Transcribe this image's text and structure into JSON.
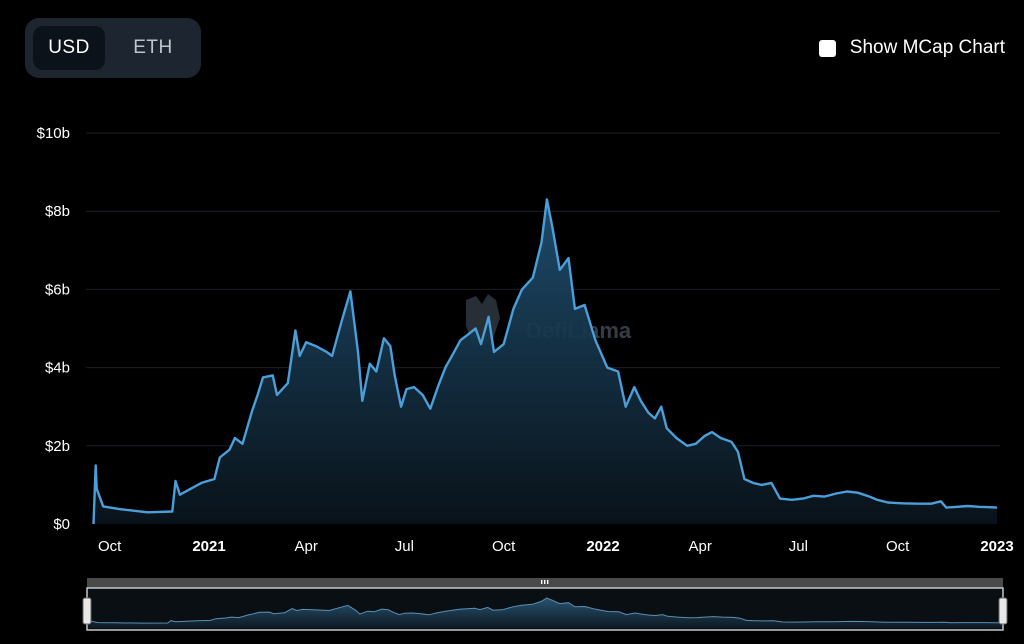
{
  "toggle": {
    "options": [
      "USD",
      "ETH"
    ],
    "active": "USD"
  },
  "mcap_toggle": {
    "label": "Show MCap Chart",
    "checked": false
  },
  "watermark": {
    "text": "DefiLlama"
  },
  "colors": {
    "line": "#4b9fd9",
    "grid": "#1b1f24",
    "background": "#000000"
  },
  "chart_data": {
    "type": "area",
    "ylim": [
      0,
      10000000000
    ],
    "y_ticks": [
      "$0",
      "$2b",
      "$4b",
      "$6b",
      "$8b",
      "$10b"
    ],
    "x_ticks": [
      {
        "date": "2020-10-01",
        "label": "Oct",
        "bold": false
      },
      {
        "date": "2021-01-01",
        "label": "2021",
        "bold": true
      },
      {
        "date": "2021-04-01",
        "label": "Apr",
        "bold": false
      },
      {
        "date": "2021-07-01",
        "label": "Jul",
        "bold": false
      },
      {
        "date": "2021-10-01",
        "label": "Oct",
        "bold": false
      },
      {
        "date": "2022-01-01",
        "label": "2022",
        "bold": true
      },
      {
        "date": "2022-04-01",
        "label": "Apr",
        "bold": false
      },
      {
        "date": "2022-07-01",
        "label": "Jul",
        "bold": false
      },
      {
        "date": "2022-10-01",
        "label": "Oct",
        "bold": false
      },
      {
        "date": "2023-01-01",
        "label": "2023",
        "bold": true
      }
    ],
    "grid": true,
    "series": [
      {
        "points": [
          [
            "2020-09-16",
            0.0
          ],
          [
            "2020-09-18",
            1.5
          ],
          [
            "2020-09-19",
            0.9
          ],
          [
            "2020-09-25",
            0.45
          ],
          [
            "2020-10-10",
            0.38
          ],
          [
            "2020-11-05",
            0.3
          ],
          [
            "2020-11-28",
            0.32
          ],
          [
            "2020-12-01",
            1.1
          ],
          [
            "2020-12-05",
            0.75
          ],
          [
            "2020-12-15",
            0.9
          ],
          [
            "2020-12-25",
            1.05
          ],
          [
            "2021-01-06",
            1.15
          ],
          [
            "2021-01-11",
            1.7
          ],
          [
            "2021-01-20",
            1.9
          ],
          [
            "2021-01-25",
            2.2
          ],
          [
            "2021-02-01",
            2.05
          ],
          [
            "2021-02-10",
            2.9
          ],
          [
            "2021-02-15",
            3.3
          ],
          [
            "2021-02-20",
            3.75
          ],
          [
            "2021-03-01",
            3.8
          ],
          [
            "2021-03-05",
            3.3
          ],
          [
            "2021-03-15",
            3.6
          ],
          [
            "2021-03-22",
            4.95
          ],
          [
            "2021-03-26",
            4.3
          ],
          [
            "2021-04-01",
            4.65
          ],
          [
            "2021-04-10",
            4.55
          ],
          [
            "2021-04-20",
            4.4
          ],
          [
            "2021-04-25",
            4.3
          ],
          [
            "2021-05-04",
            5.2
          ],
          [
            "2021-05-12",
            5.95
          ],
          [
            "2021-05-19",
            4.4
          ],
          [
            "2021-05-23",
            3.15
          ],
          [
            "2021-05-30",
            4.1
          ],
          [
            "2021-06-05",
            3.9
          ],
          [
            "2021-06-12",
            4.75
          ],
          [
            "2021-06-18",
            4.55
          ],
          [
            "2021-06-22",
            3.8
          ],
          [
            "2021-06-28",
            3.0
          ],
          [
            "2021-07-03",
            3.45
          ],
          [
            "2021-07-10",
            3.5
          ],
          [
            "2021-07-18",
            3.3
          ],
          [
            "2021-07-25",
            2.95
          ],
          [
            "2021-08-01",
            3.5
          ],
          [
            "2021-08-08",
            4.0
          ],
          [
            "2021-08-15",
            4.35
          ],
          [
            "2021-08-22",
            4.7
          ],
          [
            "2021-08-29",
            4.85
          ],
          [
            "2021-09-05",
            5.0
          ],
          [
            "2021-09-10",
            4.6
          ],
          [
            "2021-09-17",
            5.3
          ],
          [
            "2021-09-22",
            4.4
          ],
          [
            "2021-10-01",
            4.6
          ],
          [
            "2021-10-10",
            5.5
          ],
          [
            "2021-10-18",
            6.0
          ],
          [
            "2021-10-28",
            6.3
          ],
          [
            "2021-11-05",
            7.2
          ],
          [
            "2021-11-10",
            8.3
          ],
          [
            "2021-11-15",
            7.6
          ],
          [
            "2021-11-22",
            6.5
          ],
          [
            "2021-11-30",
            6.8
          ],
          [
            "2021-12-06",
            5.5
          ],
          [
            "2021-12-15",
            5.6
          ],
          [
            "2021-12-25",
            4.7
          ],
          [
            "2022-01-05",
            4.0
          ],
          [
            "2022-01-15",
            3.9
          ],
          [
            "2022-01-22",
            3.0
          ],
          [
            "2022-01-30",
            3.5
          ],
          [
            "2022-02-05",
            3.15
          ],
          [
            "2022-02-12",
            2.85
          ],
          [
            "2022-02-18",
            2.7
          ],
          [
            "2022-02-24",
            3.0
          ],
          [
            "2022-03-01",
            2.45
          ],
          [
            "2022-03-10",
            2.2
          ],
          [
            "2022-03-20",
            2.0
          ],
          [
            "2022-03-28",
            2.05
          ],
          [
            "2022-04-05",
            2.25
          ],
          [
            "2022-04-12",
            2.35
          ],
          [
            "2022-04-20",
            2.2
          ],
          [
            "2022-04-30",
            2.1
          ],
          [
            "2022-05-06",
            1.85
          ],
          [
            "2022-05-12",
            1.15
          ],
          [
            "2022-05-20",
            1.05
          ],
          [
            "2022-05-28",
            1.0
          ],
          [
            "2022-06-06",
            1.05
          ],
          [
            "2022-06-14",
            0.65
          ],
          [
            "2022-06-25",
            0.62
          ],
          [
            "2022-07-05",
            0.65
          ],
          [
            "2022-07-15",
            0.72
          ],
          [
            "2022-07-25",
            0.7
          ],
          [
            "2022-08-05",
            0.78
          ],
          [
            "2022-08-15",
            0.83
          ],
          [
            "2022-08-25",
            0.8
          ],
          [
            "2022-09-05",
            0.7
          ],
          [
            "2022-09-12",
            0.62
          ],
          [
            "2022-09-22",
            0.55
          ],
          [
            "2022-10-05",
            0.53
          ],
          [
            "2022-10-20",
            0.52
          ],
          [
            "2022-11-01",
            0.52
          ],
          [
            "2022-11-10",
            0.58
          ],
          [
            "2022-11-15",
            0.42
          ],
          [
            "2022-11-25",
            0.44
          ],
          [
            "2022-12-05",
            0.46
          ],
          [
            "2022-12-15",
            0.44
          ],
          [
            "2022-12-25",
            0.43
          ],
          [
            "2023-01-01",
            0.42
          ]
        ]
      }
    ]
  }
}
